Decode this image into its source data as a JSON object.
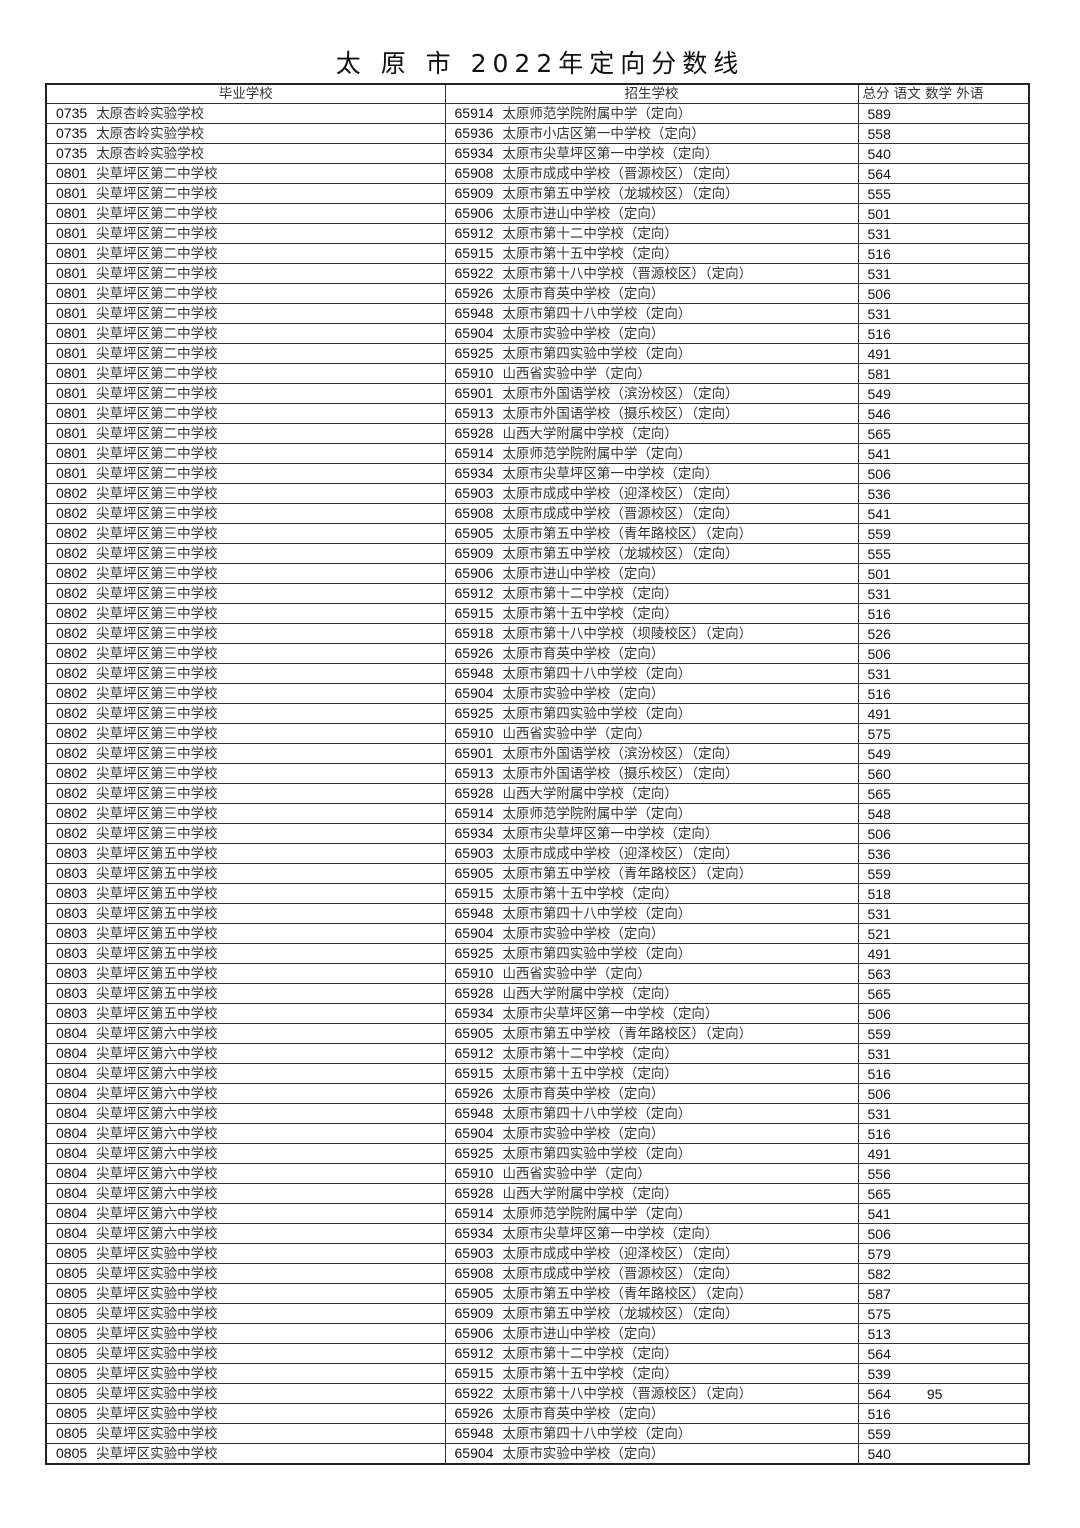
{
  "title": "太 原 市 2022年定向分数线",
  "headers": {
    "graduate_school": "毕业学校",
    "enroll_school": "招生学校",
    "scores": "总分  语文  数学  外语"
  },
  "rows": [
    [
      "0735",
      "太原杏岭实验学校",
      "65914",
      "太原师范学院附属中学（定向）",
      "589",
      ""
    ],
    [
      "0735",
      "太原杏岭实验学校",
      "65936",
      "太原市小店区第一中学校（定向）",
      "558",
      ""
    ],
    [
      "0735",
      "太原杏岭实验学校",
      "65934",
      "太原市尖草坪区第一中学校（定向）",
      "540",
      ""
    ],
    [
      "0801",
      "尖草坪区第二中学校",
      "65908",
      "太原市成成中学校（晋源校区）（定向）",
      "564",
      ""
    ],
    [
      "0801",
      "尖草坪区第二中学校",
      "65909",
      "太原市第五中学校（龙城校区）（定向）",
      "555",
      ""
    ],
    [
      "0801",
      "尖草坪区第二中学校",
      "65906",
      "太原市进山中学校（定向）",
      "501",
      ""
    ],
    [
      "0801",
      "尖草坪区第二中学校",
      "65912",
      "太原市第十二中学校（定向）",
      "531",
      ""
    ],
    [
      "0801",
      "尖草坪区第二中学校",
      "65915",
      "太原市第十五中学校（定向）",
      "516",
      ""
    ],
    [
      "0801",
      "尖草坪区第二中学校",
      "65922",
      "太原市第十八中学校（晋源校区）（定向）",
      "531",
      ""
    ],
    [
      "0801",
      "尖草坪区第二中学校",
      "65926",
      "太原市育英中学校（定向）",
      "506",
      ""
    ],
    [
      "0801",
      "尖草坪区第二中学校",
      "65948",
      "太原市第四十八中学校（定向）",
      "531",
      ""
    ],
    [
      "0801",
      "尖草坪区第二中学校",
      "65904",
      "太原市实验中学校（定向）",
      "516",
      ""
    ],
    [
      "0801",
      "尖草坪区第二中学校",
      "65925",
      "太原市第四实验中学校（定向）",
      "491",
      ""
    ],
    [
      "0801",
      "尖草坪区第二中学校",
      "65910",
      "山西省实验中学（定向）",
      "581",
      ""
    ],
    [
      "0801",
      "尖草坪区第二中学校",
      "65901",
      "太原市外国语学校（滨汾校区）（定向）",
      "549",
      ""
    ],
    [
      "0801",
      "尖草坪区第二中学校",
      "65913",
      "太原市外国语学校（摄乐校区）（定向）",
      "546",
      ""
    ],
    [
      "0801",
      "尖草坪区第二中学校",
      "65928",
      "山西大学附属中学校（定向）",
      "565",
      ""
    ],
    [
      "0801",
      "尖草坪区第二中学校",
      "65914",
      "太原师范学院附属中学（定向）",
      "541",
      ""
    ],
    [
      "0801",
      "尖草坪区第二中学校",
      "65934",
      "太原市尖草坪区第一中学校（定向）",
      "506",
      ""
    ],
    [
      "0802",
      "尖草坪区第三中学校",
      "65903",
      "太原市成成中学校（迎泽校区）（定向）",
      "536",
      ""
    ],
    [
      "0802",
      "尖草坪区第三中学校",
      "65908",
      "太原市成成中学校（晋源校区）（定向）",
      "541",
      ""
    ],
    [
      "0802",
      "尖草坪区第三中学校",
      "65905",
      "太原市第五中学校（青年路校区）（定向）",
      "559",
      ""
    ],
    [
      "0802",
      "尖草坪区第三中学校",
      "65909",
      "太原市第五中学校（龙城校区）（定向）",
      "555",
      ""
    ],
    [
      "0802",
      "尖草坪区第三中学校",
      "65906",
      "太原市进山中学校（定向）",
      "501",
      ""
    ],
    [
      "0802",
      "尖草坪区第三中学校",
      "65912",
      "太原市第十二中学校（定向）",
      "531",
      ""
    ],
    [
      "0802",
      "尖草坪区第三中学校",
      "65915",
      "太原市第十五中学校（定向）",
      "516",
      ""
    ],
    [
      "0802",
      "尖草坪区第三中学校",
      "65918",
      "太原市第十八中学校（坝陵校区）（定向）",
      "526",
      ""
    ],
    [
      "0802",
      "尖草坪区第三中学校",
      "65926",
      "太原市育英中学校（定向）",
      "506",
      ""
    ],
    [
      "0802",
      "尖草坪区第三中学校",
      "65948",
      "太原市第四十八中学校（定向）",
      "531",
      ""
    ],
    [
      "0802",
      "尖草坪区第三中学校",
      "65904",
      "太原市实验中学校（定向）",
      "516",
      ""
    ],
    [
      "0802",
      "尖草坪区第三中学校",
      "65925",
      "太原市第四实验中学校（定向）",
      "491",
      ""
    ],
    [
      "0802",
      "尖草坪区第三中学校",
      "65910",
      "山西省实验中学（定向）",
      "575",
      ""
    ],
    [
      "0802",
      "尖草坪区第三中学校",
      "65901",
      "太原市外国语学校（滨汾校区）（定向）",
      "549",
      ""
    ],
    [
      "0802",
      "尖草坪区第三中学校",
      "65913",
      "太原市外国语学校（摄乐校区）（定向）",
      "560",
      ""
    ],
    [
      "0802",
      "尖草坪区第三中学校",
      "65928",
      "山西大学附属中学校（定向）",
      "565",
      ""
    ],
    [
      "0802",
      "尖草坪区第三中学校",
      "65914",
      "太原师范学院附属中学（定向）",
      "548",
      ""
    ],
    [
      "0802",
      "尖草坪区第三中学校",
      "65934",
      "太原市尖草坪区第一中学校（定向）",
      "506",
      ""
    ],
    [
      "0803",
      "尖草坪区第五中学校",
      "65903",
      "太原市成成中学校（迎泽校区）（定向）",
      "536",
      ""
    ],
    [
      "0803",
      "尖草坪区第五中学校",
      "65905",
      "太原市第五中学校（青年路校区）（定向）",
      "559",
      ""
    ],
    [
      "0803",
      "尖草坪区第五中学校",
      "65915",
      "太原市第十五中学校（定向）",
      "518",
      ""
    ],
    [
      "0803",
      "尖草坪区第五中学校",
      "65948",
      "太原市第四十八中学校（定向）",
      "531",
      ""
    ],
    [
      "0803",
      "尖草坪区第五中学校",
      "65904",
      "太原市实验中学校（定向）",
      "521",
      ""
    ],
    [
      "0803",
      "尖草坪区第五中学校",
      "65925",
      "太原市第四实验中学校（定向）",
      "491",
      ""
    ],
    [
      "0803",
      "尖草坪区第五中学校",
      "65910",
      "山西省实验中学（定向）",
      "563",
      ""
    ],
    [
      "0803",
      "尖草坪区第五中学校",
      "65928",
      "山西大学附属中学校（定向）",
      "565",
      ""
    ],
    [
      "0803",
      "尖草坪区第五中学校",
      "65934",
      "太原市尖草坪区第一中学校（定向）",
      "506",
      ""
    ],
    [
      "0804",
      "尖草坪区第六中学校",
      "65905",
      "太原市第五中学校（青年路校区）（定向）",
      "559",
      ""
    ],
    [
      "0804",
      "尖草坪区第六中学校",
      "65912",
      "太原市第十二中学校（定向）",
      "531",
      ""
    ],
    [
      "0804",
      "尖草坪区第六中学校",
      "65915",
      "太原市第十五中学校（定向）",
      "516",
      ""
    ],
    [
      "0804",
      "尖草坪区第六中学校",
      "65926",
      "太原市育英中学校（定向）",
      "506",
      ""
    ],
    [
      "0804",
      "尖草坪区第六中学校",
      "65948",
      "太原市第四十八中学校（定向）",
      "531",
      ""
    ],
    [
      "0804",
      "尖草坪区第六中学校",
      "65904",
      "太原市实验中学校（定向）",
      "516",
      ""
    ],
    [
      "0804",
      "尖草坪区第六中学校",
      "65925",
      "太原市第四实验中学校（定向）",
      "491",
      ""
    ],
    [
      "0804",
      "尖草坪区第六中学校",
      "65910",
      "山西省实验中学（定向）",
      "556",
      ""
    ],
    [
      "0804",
      "尖草坪区第六中学校",
      "65928",
      "山西大学附属中学校（定向）",
      "565",
      ""
    ],
    [
      "0804",
      "尖草坪区第六中学校",
      "65914",
      "太原师范学院附属中学（定向）",
      "541",
      ""
    ],
    [
      "0804",
      "尖草坪区第六中学校",
      "65934",
      "太原市尖草坪区第一中学校（定向）",
      "506",
      ""
    ],
    [
      "0805",
      "尖草坪区实验中学校",
      "65903",
      "太原市成成中学校（迎泽校区）（定向）",
      "579",
      ""
    ],
    [
      "0805",
      "尖草坪区实验中学校",
      "65908",
      "太原市成成中学校（晋源校区）（定向）",
      "582",
      ""
    ],
    [
      "0805",
      "尖草坪区实验中学校",
      "65905",
      "太原市第五中学校（青年路校区）（定向）",
      "587",
      ""
    ],
    [
      "0805",
      "尖草坪区实验中学校",
      "65909",
      "太原市第五中学校（龙城校区）（定向）",
      "575",
      ""
    ],
    [
      "0805",
      "尖草坪区实验中学校",
      "65906",
      "太原市进山中学校（定向）",
      "513",
      ""
    ],
    [
      "0805",
      "尖草坪区实验中学校",
      "65912",
      "太原市第十二中学校（定向）",
      "564",
      ""
    ],
    [
      "0805",
      "尖草坪区实验中学校",
      "65915",
      "太原市第十五中学校（定向）",
      "539",
      ""
    ],
    [
      "0805",
      "尖草坪区实验中学校",
      "65922",
      "太原市第十八中学校（晋源校区）（定向）",
      "564",
      "95"
    ],
    [
      "0805",
      "尖草坪区实验中学校",
      "65926",
      "太原市育英中学校（定向）",
      "516",
      ""
    ],
    [
      "0805",
      "尖草坪区实验中学校",
      "65948",
      "太原市第四十八中学校（定向）",
      "559",
      ""
    ],
    [
      "0805",
      "尖草坪区实验中学校",
      "65904",
      "太原市实验中学校（定向）",
      "540",
      ""
    ]
  ]
}
